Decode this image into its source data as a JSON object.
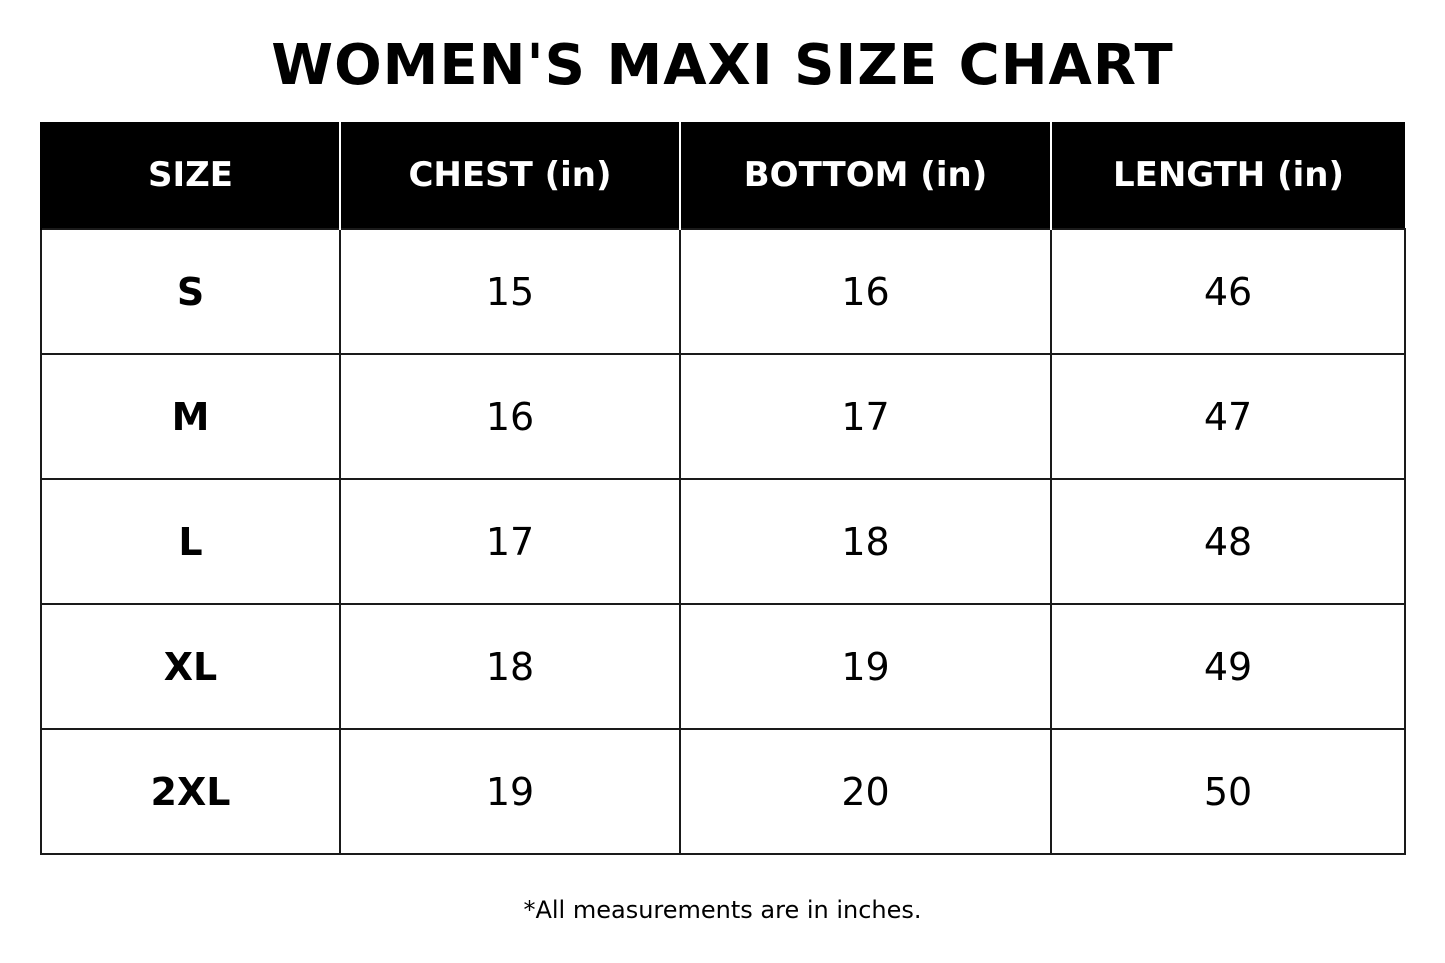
{
  "title": "WOMEN'S MAXI SIZE CHART",
  "table": {
    "headers": [
      "SIZE",
      "CHEST (in)",
      "BOTTOM (in)",
      "LENGTH (in)"
    ],
    "rows": [
      [
        "S",
        "15",
        "16",
        "46"
      ],
      [
        "M",
        "16",
        "17",
        "47"
      ],
      [
        "L",
        "17",
        "18",
        "48"
      ],
      [
        "XL",
        "18",
        "19",
        "49"
      ],
      [
        "2XL",
        "19",
        "20",
        "50"
      ]
    ]
  },
  "footnote": "*All measurements are in inches.",
  "colors": {
    "header_background": "#000000",
    "header_text": "#ffffff",
    "body_text": "#000000",
    "grid_lines": "#1a1a1a"
  }
}
